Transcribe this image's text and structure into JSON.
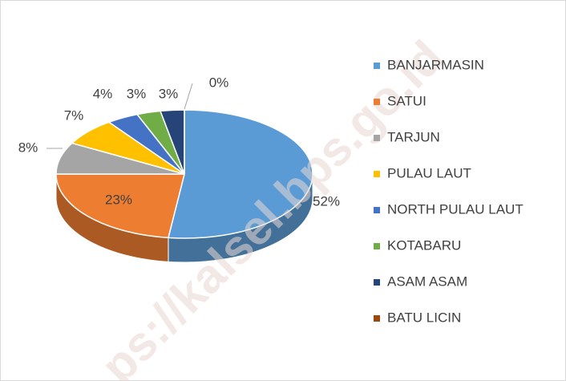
{
  "chart_data": {
    "type": "pie3d",
    "categories": [
      "BANJARMASIN",
      "SATUI",
      "TARJUN",
      "PULAU LAUT",
      "NORTH PULAU LAUT",
      "KOTABARU",
      "ASAM ASAM",
      "BATU LICIN"
    ],
    "values": [
      52,
      23,
      8,
      7,
      4,
      3,
      3,
      0
    ],
    "value_labels": [
      "52%",
      "23%",
      "8%",
      "7%",
      "4%",
      "3%",
      "3%",
      "0%"
    ],
    "colors": [
      "#5b9bd5",
      "#ed7d31",
      "#a5a5a5",
      "#ffc000",
      "#4472c4",
      "#70ad47",
      "#264478",
      "#9e480e"
    ],
    "legend": "right",
    "watermark": "ps://kalsel.bps.go.id"
  }
}
